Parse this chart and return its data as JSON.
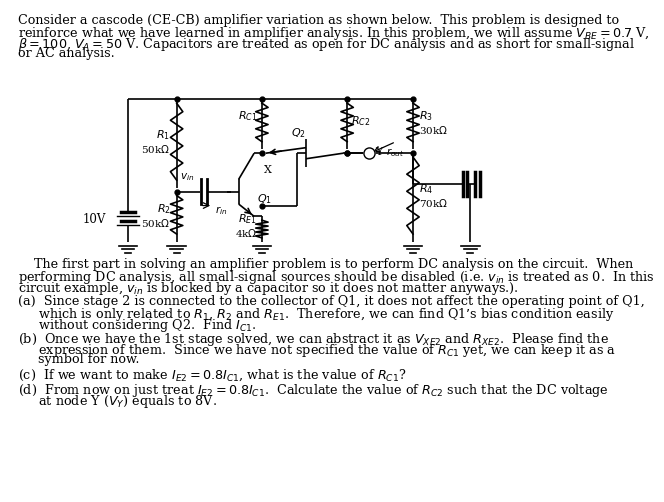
{
  "bg_color": "#ffffff",
  "text_color": "#000000",
  "header_lines": [
    "Consider a cascode (CE-CB) amplifier variation as shown below.  This problem is designed to",
    "reinforce what we have learned in amplifier analysis. In this problem, we will assume $V_{BE} = 0.7$ V,",
    "$\\beta = 100$, $V_A = 50$ V. Capacitors are treated as open for DC analysis and as short for small-signal",
    "or AC analysis."
  ],
  "para1_lines": [
    "    The first part in solving an amplifier problem is to perform DC analysis on the circuit.  When",
    "performing DC analysis, all small-signal sources should be disabled (i.e. $v_{in}$ is treated as 0.  In this",
    "circuit example, $v_{in}$ is blocked by a capacitor so it does not matter anyways.)."
  ],
  "para_a_line1": "(a)  Since stage 2 is connected to the collector of Q1, it does not affect the operating point of Q1,",
  "para_a_line2": "     which is only related to $R_1$, $R_2$ and $R_{E1}$.  Therefore, we can find Q1’s bias condition easily",
  "para_a_line3": "     without considering Q2.  Find $I_{C1}$.",
  "para_b_line1": "(b)  Once we have the 1st stage solved, we can abstract it as $V_{XE2}$ and $R_{XE2}$.  Please find the",
  "para_b_line2": "     expression of them.  Since we have not specified the value of $R_{C1}$ yet, we can keep it as a",
  "para_b_line3": "     symbol for now.",
  "para_c": "(c)  If we want to make $I_{E2} = 0.8I_{C1}$, what is the value of $R_{C1}$?",
  "para_d_line1": "(d)  From now on just treat $I_{E2} = 0.8I_{C1}$.  Calculate the value of $R_{C2}$ such that the DC voltage",
  "para_d_line2": "     at node Y ($V_Y$) equals to 8V."
}
